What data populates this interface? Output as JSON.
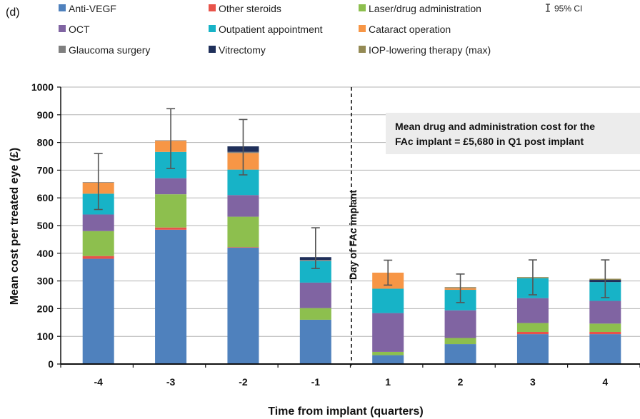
{
  "chart_data": {
    "type": "bar",
    "stacked": true,
    "panel_label": "(d)",
    "xlabel": "Time from implant (quarters)",
    "ylabel": "Mean cost per treated eye (£)",
    "ylim": [
      0,
      1000
    ],
    "yticks": [
      "0",
      "100",
      "200",
      "300",
      "400",
      "500",
      "600",
      "700",
      "800",
      "900",
      "1000"
    ],
    "grid": true,
    "legend_position": "top",
    "categories": [
      "-4",
      "-3",
      "-2",
      "-1",
      "1",
      "2",
      "3",
      "4"
    ],
    "series": [
      {
        "name": "Anti-VEGF",
        "color": "#4f81bd",
        "values": [
          380,
          485,
          420,
          160,
          32,
          72,
          108,
          108
        ]
      },
      {
        "name": "Other steroids",
        "color": "#e8534a",
        "values": [
          10,
          8,
          2,
          0,
          0,
          0,
          8,
          8
        ]
      },
      {
        "name": "Laser/drug administration",
        "color": "#8dbf4e",
        "values": [
          90,
          120,
          110,
          42,
          12,
          22,
          32,
          30
        ]
      },
      {
        "name": "OCT",
        "color": "#8064a2",
        "values": [
          60,
          58,
          78,
          92,
          140,
          100,
          90,
          82
        ]
      },
      {
        "name": "Outpatient appointment",
        "color": "#17b3c7",
        "values": [
          75,
          95,
          92,
          78,
          88,
          74,
          72,
          68
        ]
      },
      {
        "name": "Cataract operation",
        "color": "#f79646",
        "values": [
          40,
          40,
          60,
          0,
          58,
          6,
          0,
          0
        ]
      },
      {
        "name": "Glaucoma surgery",
        "color": "#7f7f7f",
        "values": [
          2,
          2,
          4,
          4,
          0,
          2,
          0,
          0
        ]
      },
      {
        "name": "Vitrectomy",
        "color": "#1f2f5a",
        "values": [
          0,
          0,
          20,
          10,
          0,
          0,
          0,
          8
        ]
      },
      {
        "name": "IOP-lowering therapy (max)",
        "color": "#948a54",
        "values": [
          0,
          0,
          0,
          0,
          0,
          2,
          4,
          4
        ]
      }
    ],
    "ci": {
      "label": "95% CI",
      "lower": [
        558,
        706,
        683,
        345,
        285,
        222,
        250,
        240
      ],
      "upper": [
        760,
        922,
        883,
        492,
        375,
        325,
        376,
        376
      ]
    },
    "annotations": {
      "implant_label": "Day of FAc implant",
      "info_box": [
        "Mean drug and administration cost for the",
        "FAc implant = £5,680 in Q1 post implant"
      ]
    }
  }
}
